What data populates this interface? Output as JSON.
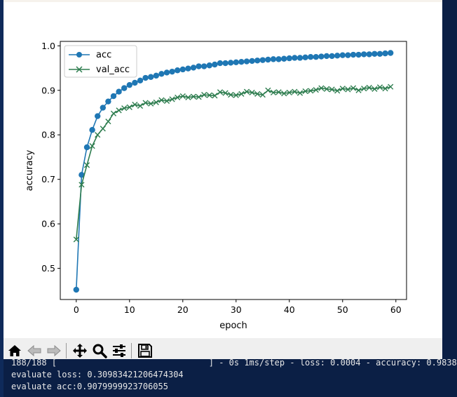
{
  "toolbar": {
    "buttons": [
      {
        "name": "home-icon",
        "tooltip": "Home"
      },
      {
        "name": "back-arrow-icon",
        "tooltip": "Back"
      },
      {
        "name": "forward-arrow-icon",
        "tooltip": "Forward"
      },
      {
        "name": "pan-icon",
        "tooltip": "Pan"
      },
      {
        "name": "zoom-icon",
        "tooltip": "Zoom"
      },
      {
        "name": "configure-subplots-icon",
        "tooltip": "Subplots"
      },
      {
        "name": "save-icon",
        "tooltip": "Save"
      }
    ]
  },
  "console": {
    "partial_line": "188/188 [                              ] - 0s 1ms/step - loss: 0.0004 - accuracy: 0.9838",
    "line1": "evaluate loss: 0.30983421206474304",
    "line2": "evaluate acc:0.9079999923706055"
  },
  "colors": {
    "acc": "#1f77b4",
    "val_acc": "#2e7d4f",
    "console_bg": "#0b1f45",
    "toolbar_bg": "#efefef"
  },
  "chart_data": {
    "type": "line",
    "title": "",
    "xlabel": "epoch",
    "ylabel": "accuracy",
    "xlim": [
      -3,
      62
    ],
    "ylim": [
      0.43,
      1.01
    ],
    "xticks": [
      0,
      10,
      20,
      30,
      40,
      50,
      60
    ],
    "yticks": [
      0.5,
      0.6,
      0.7,
      0.8,
      0.9,
      1.0
    ],
    "grid": false,
    "legend_loc": "upper left",
    "x": [
      0,
      1,
      2,
      3,
      4,
      5,
      6,
      7,
      8,
      9,
      10,
      11,
      12,
      13,
      14,
      15,
      16,
      17,
      18,
      19,
      20,
      21,
      22,
      23,
      24,
      25,
      26,
      27,
      28,
      29,
      30,
      31,
      32,
      33,
      34,
      35,
      36,
      37,
      38,
      39,
      40,
      41,
      42,
      43,
      44,
      45,
      46,
      47,
      48,
      49,
      50,
      51,
      52,
      53,
      54,
      55,
      56,
      57,
      58,
      59
    ],
    "series": [
      {
        "name": "acc",
        "marker": "o",
        "values": [
          0.452,
          0.71,
          0.772,
          0.811,
          0.842,
          0.861,
          0.875,
          0.887,
          0.897,
          0.905,
          0.912,
          0.917,
          0.922,
          0.928,
          0.93,
          0.933,
          0.937,
          0.94,
          0.942,
          0.945,
          0.947,
          0.949,
          0.951,
          0.954,
          0.954,
          0.956,
          0.958,
          0.961,
          0.961,
          0.962,
          0.963,
          0.964,
          0.965,
          0.966,
          0.967,
          0.968,
          0.969,
          0.97,
          0.97,
          0.971,
          0.972,
          0.973,
          0.973,
          0.974,
          0.975,
          0.975,
          0.976,
          0.977,
          0.977,
          0.978,
          0.979,
          0.979,
          0.98,
          0.98,
          0.981,
          0.981,
          0.982,
          0.982,
          0.983,
          0.984
        ]
      },
      {
        "name": "val_acc",
        "marker": "x",
        "values": [
          0.565,
          0.688,
          0.732,
          0.775,
          0.8,
          0.814,
          0.83,
          0.848,
          0.855,
          0.86,
          0.862,
          0.868,
          0.865,
          0.872,
          0.87,
          0.873,
          0.878,
          0.876,
          0.88,
          0.884,
          0.887,
          0.884,
          0.886,
          0.885,
          0.89,
          0.889,
          0.888,
          0.896,
          0.894,
          0.89,
          0.889,
          0.892,
          0.897,
          0.895,
          0.892,
          0.89,
          0.9,
          0.895,
          0.896,
          0.893,
          0.895,
          0.897,
          0.894,
          0.898,
          0.899,
          0.901,
          0.905,
          0.903,
          0.902,
          0.899,
          0.904,
          0.902,
          0.905,
          0.9,
          0.904,
          0.906,
          0.903,
          0.907,
          0.904,
          0.908
        ]
      }
    ]
  }
}
